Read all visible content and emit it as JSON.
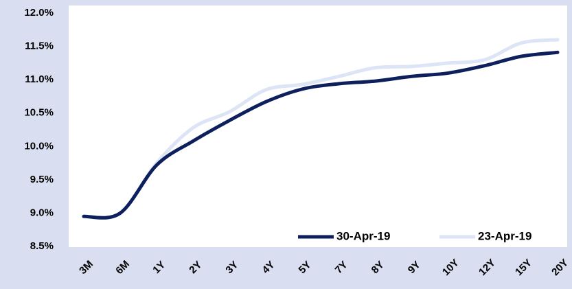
{
  "chart_data": {
    "type": "line",
    "categories": [
      "3M",
      "6M",
      "1Y",
      "2Y",
      "3Y",
      "4Y",
      "5Y",
      "7Y",
      "8Y",
      "9Y",
      "10Y",
      "12Y",
      "15Y",
      "20Y"
    ],
    "series": [
      {
        "name": "30-Apr-19",
        "color": "#0d1f5c",
        "values": [
          8.95,
          9.0,
          9.72,
          10.08,
          10.39,
          10.67,
          10.86,
          10.94,
          10.98,
          11.05,
          11.1,
          11.21,
          11.35,
          11.41
        ]
      },
      {
        "name": "23-Apr-19",
        "color": "#dce4f5",
        "values": [
          8.95,
          9.0,
          9.75,
          10.28,
          10.52,
          10.85,
          10.93,
          11.05,
          11.18,
          11.2,
          11.25,
          11.3,
          11.55,
          11.6
        ]
      }
    ],
    "ylim": [
      8.5,
      12.0
    ],
    "yticks": [
      {
        "value": 8.5,
        "label": "8.5%"
      },
      {
        "value": 9.0,
        "label": "9.0%"
      },
      {
        "value": 9.5,
        "label": "9.5%"
      },
      {
        "value": 10.0,
        "label": "10.0%"
      },
      {
        "value": 10.5,
        "label": "10.5%"
      },
      {
        "value": 11.0,
        "label": "11.0%"
      },
      {
        "value": 11.5,
        "label": "11.5%"
      },
      {
        "value": 12.0,
        "label": "12.0%"
      }
    ],
    "legend": "lower right",
    "grid": false
  }
}
